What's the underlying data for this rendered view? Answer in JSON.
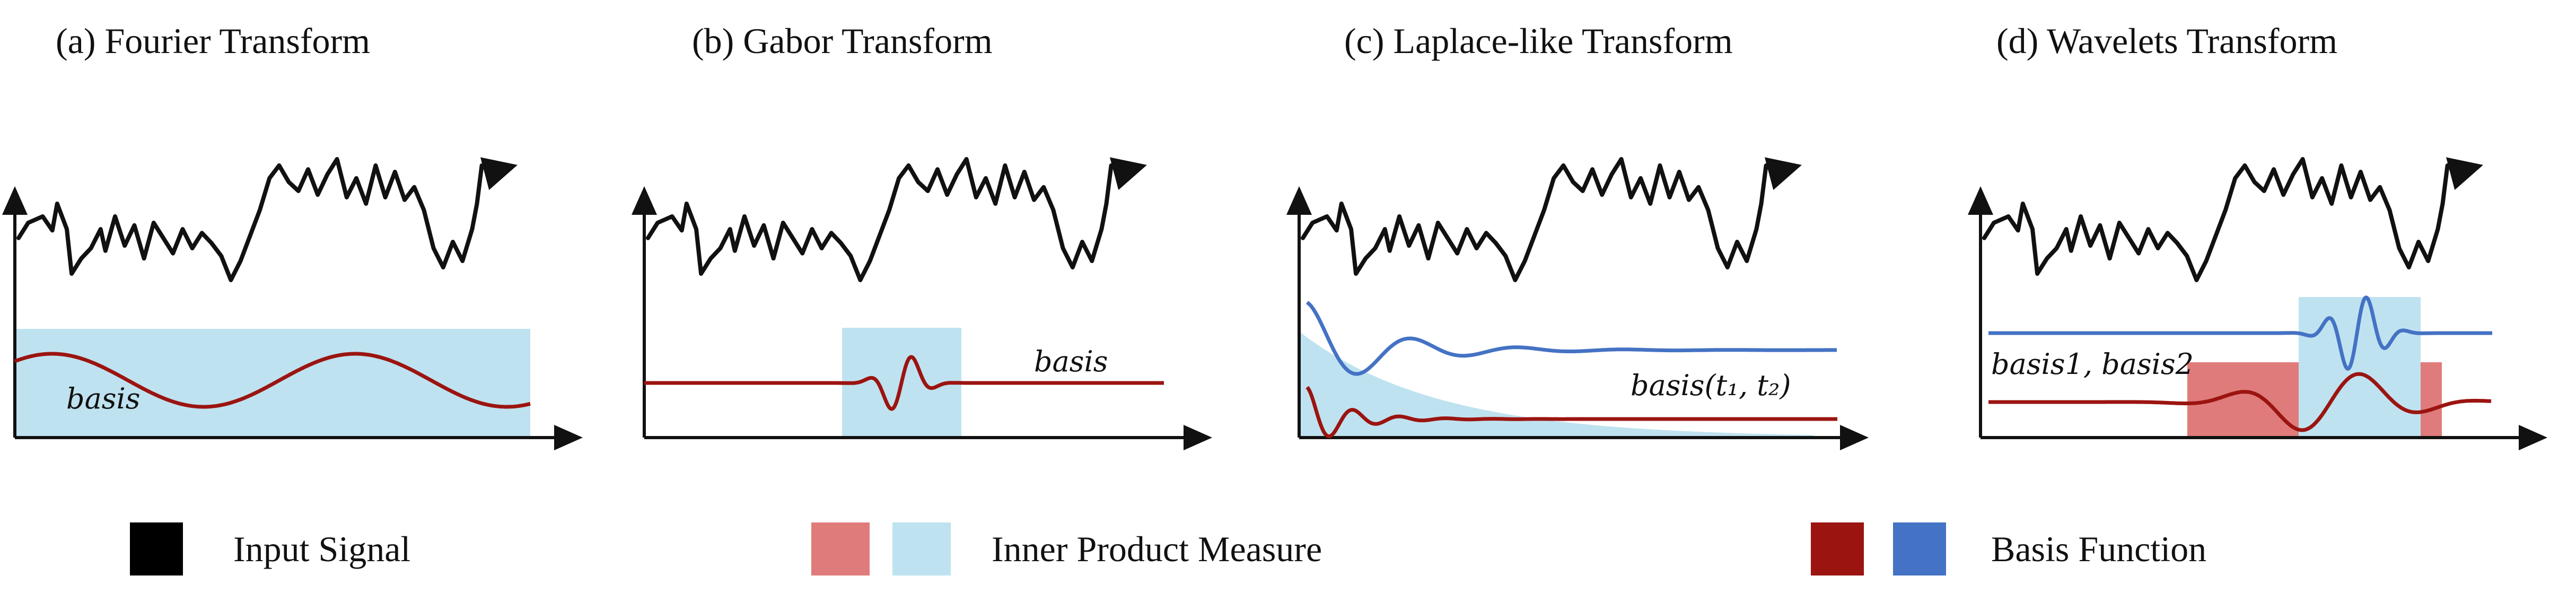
{
  "panels": [
    {
      "title": "(a) Fourier Transform",
      "basis_label": "basis"
    },
    {
      "title": "(b) Gabor Transform",
      "basis_label": "basis"
    },
    {
      "title": "(c) Laplace-like Transform",
      "basis_label": "basis(t₁, t₂)"
    },
    {
      "title": "(d) Wavelets Transform",
      "basis_label": "basis1, basis2"
    }
  ],
  "legend": {
    "input_signal": "Input Signal",
    "inner_product": "Inner Product Measure",
    "basis_function": "Basis Function"
  },
  "colors": {
    "signal": "#000000",
    "basis_red": "#9b1410",
    "basis_blue": "#4472c4",
    "inner_light_blue": "#bfe2f0",
    "inner_light_red": "#e07b7b"
  }
}
